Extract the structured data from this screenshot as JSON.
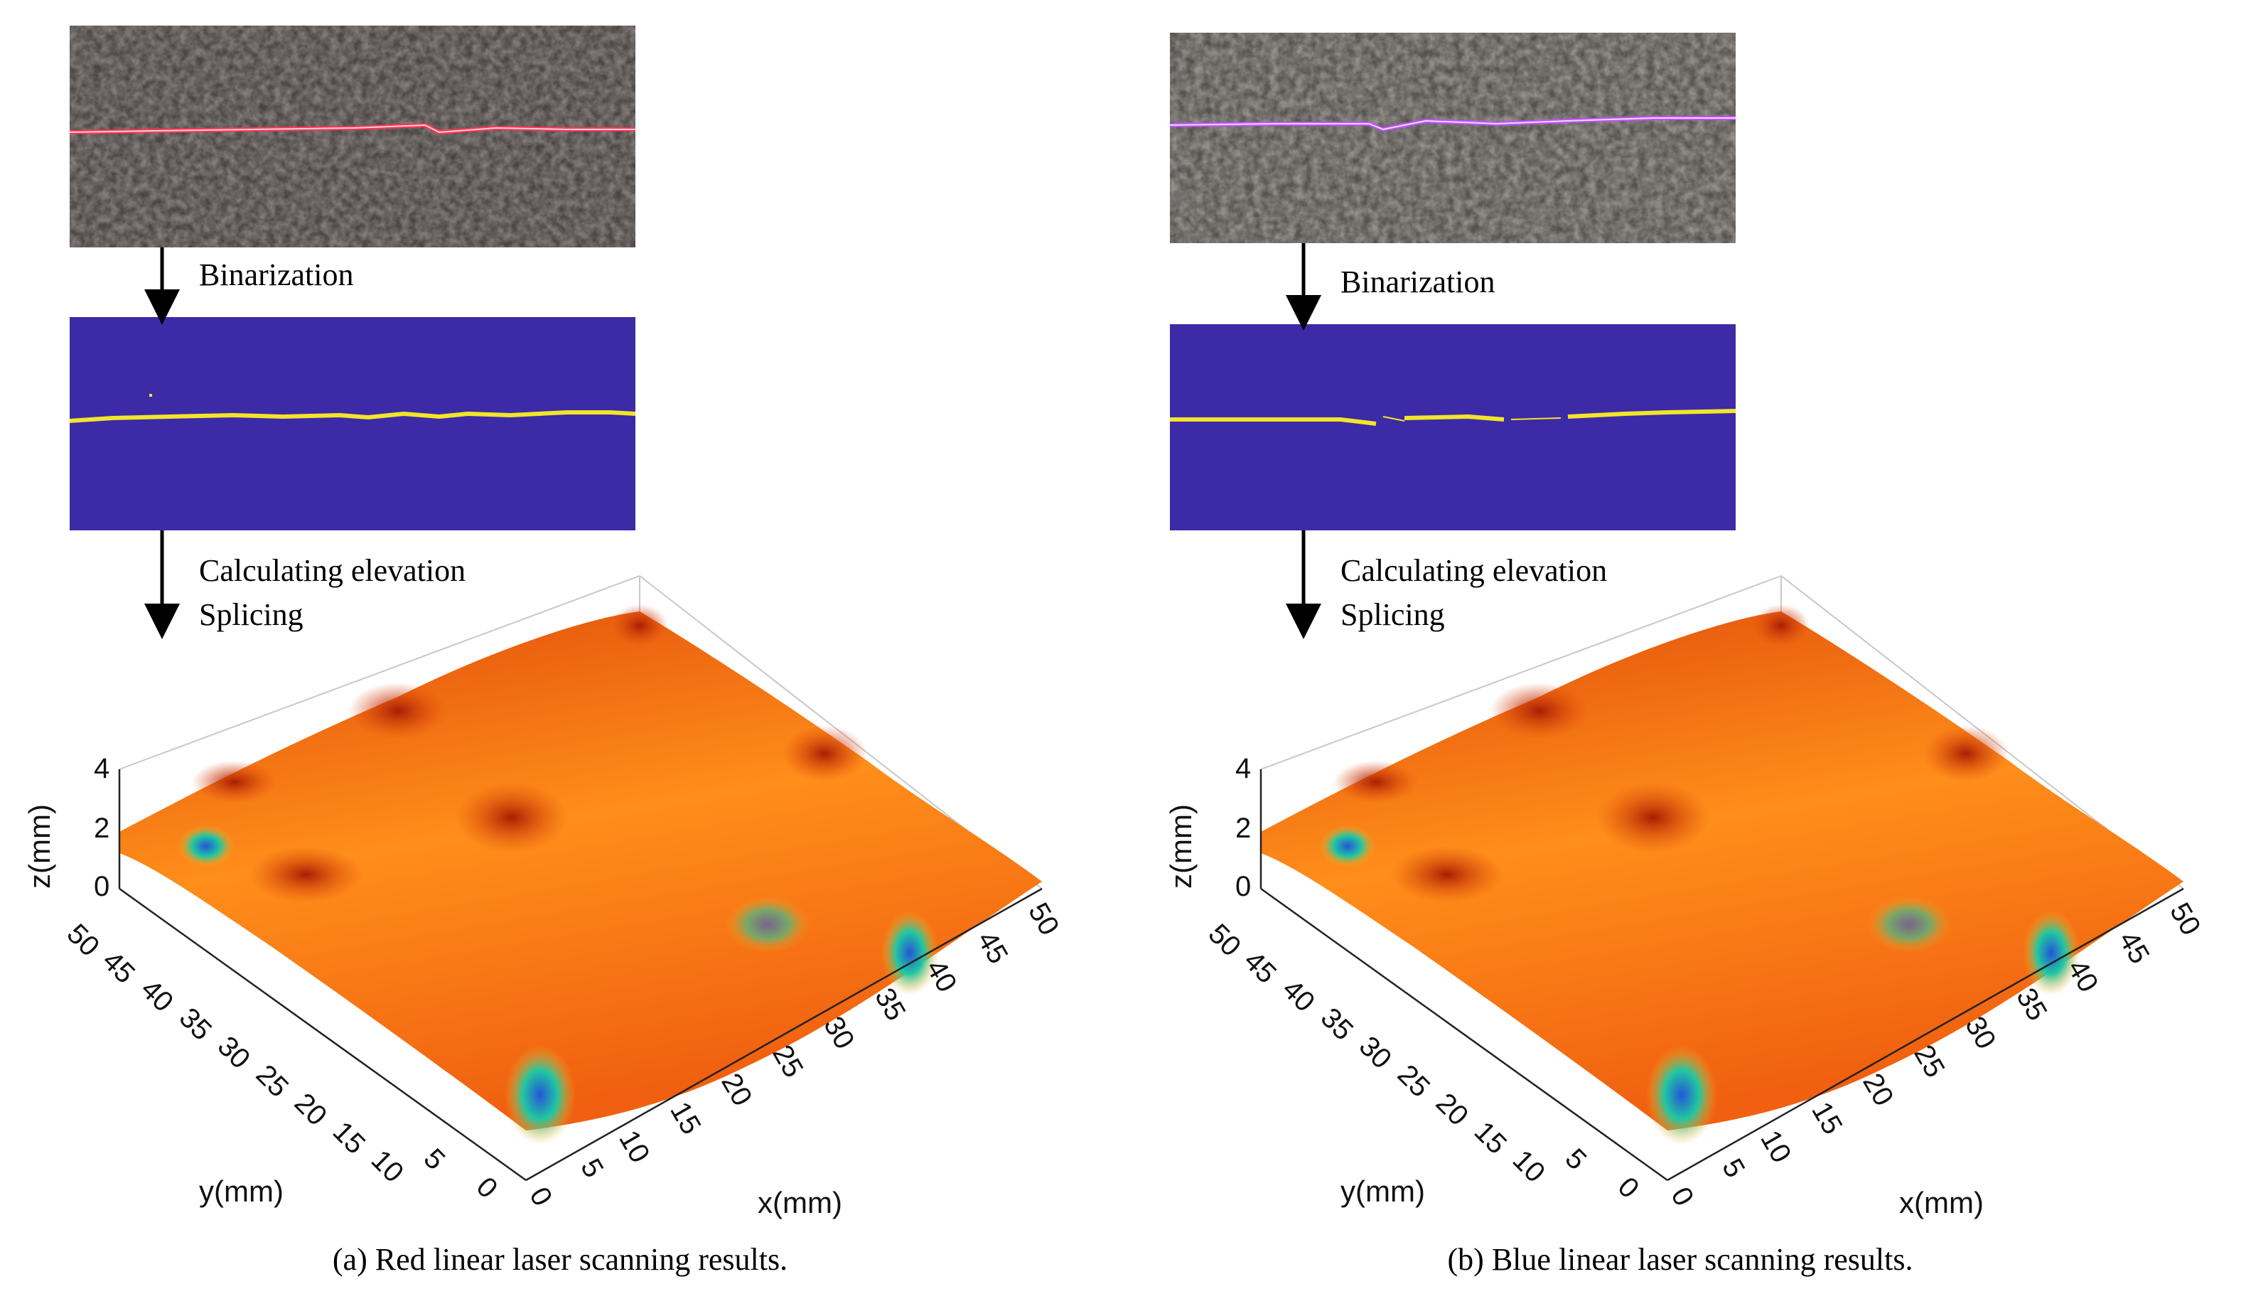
{
  "panels": [
    {
      "id": "a",
      "laser_color": "#ff3355",
      "steps": [
        "Binarization",
        "Calculating elevation",
        "Splicing"
      ],
      "caption": "(a) Red linear laser scanning results.",
      "axis": {
        "z_label": "z(mm)",
        "y_label": "y(mm)",
        "x_label": "x(mm)",
        "z_ticks": [
          "0",
          "2",
          "4"
        ],
        "y_ticks": [
          "0",
          "5",
          "10",
          "15",
          "20",
          "25",
          "30",
          "35",
          "40",
          "45",
          "50"
        ],
        "x_ticks": [
          "0",
          "5",
          "10",
          "15",
          "20",
          "25",
          "30",
          "35",
          "40",
          "45",
          "50"
        ]
      }
    },
    {
      "id": "b",
      "laser_color": "#c050ff",
      "steps": [
        "Binarization",
        "Calculating elevation",
        "Splicing"
      ],
      "caption": "(b) Blue linear laser scanning results.",
      "axis": {
        "z_label": "z(mm)",
        "y_label": "y(mm)",
        "x_label": "x(mm)",
        "z_ticks": [
          "0",
          "2",
          "4"
        ],
        "y_ticks": [
          "0",
          "5",
          "10",
          "15",
          "20",
          "25",
          "30",
          "35",
          "40",
          "45",
          "50"
        ],
        "x_ticks": [
          "0",
          "5",
          "10",
          "15",
          "20",
          "25",
          "30",
          "35",
          "40",
          "45",
          "50"
        ]
      }
    }
  ],
  "colors": {
    "binary_bg": "#3d2aa6",
    "binary_line": "#f2e52a",
    "surface_high": "#c82a06",
    "surface_mid": "#ff9a1e",
    "surface_low": "#2a6fe0"
  }
}
